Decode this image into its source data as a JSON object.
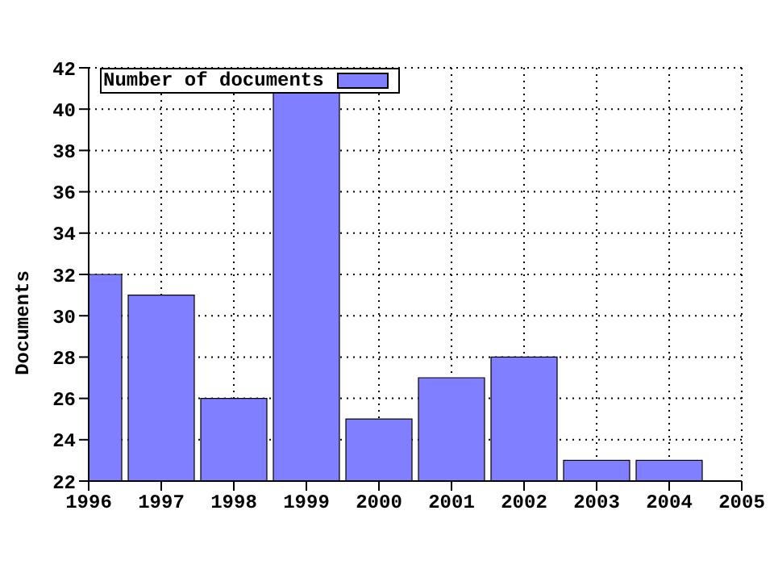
{
  "chart_data": {
    "type": "bar",
    "ylabel": "Documents",
    "x": [
      1996,
      1997,
      1998,
      1999,
      2000,
      2001,
      2002,
      2003,
      2004
    ],
    "series": [
      {
        "name": "Number of documents",
        "color": "#7f7fff",
        "values": [
          32,
          31,
          26,
          41,
          25,
          27,
          28,
          23,
          23
        ]
      }
    ],
    "xlim": [
      1996,
      2005
    ],
    "xticks": [
      1996,
      1997,
      1998,
      1999,
      2000,
      2001,
      2002,
      2003,
      2004,
      2005
    ],
    "ylim": [
      22,
      42
    ],
    "yticks": [
      22,
      24,
      26,
      28,
      30,
      32,
      34,
      36,
      38,
      40,
      42
    ],
    "grid": true,
    "legend": "top left"
  }
}
